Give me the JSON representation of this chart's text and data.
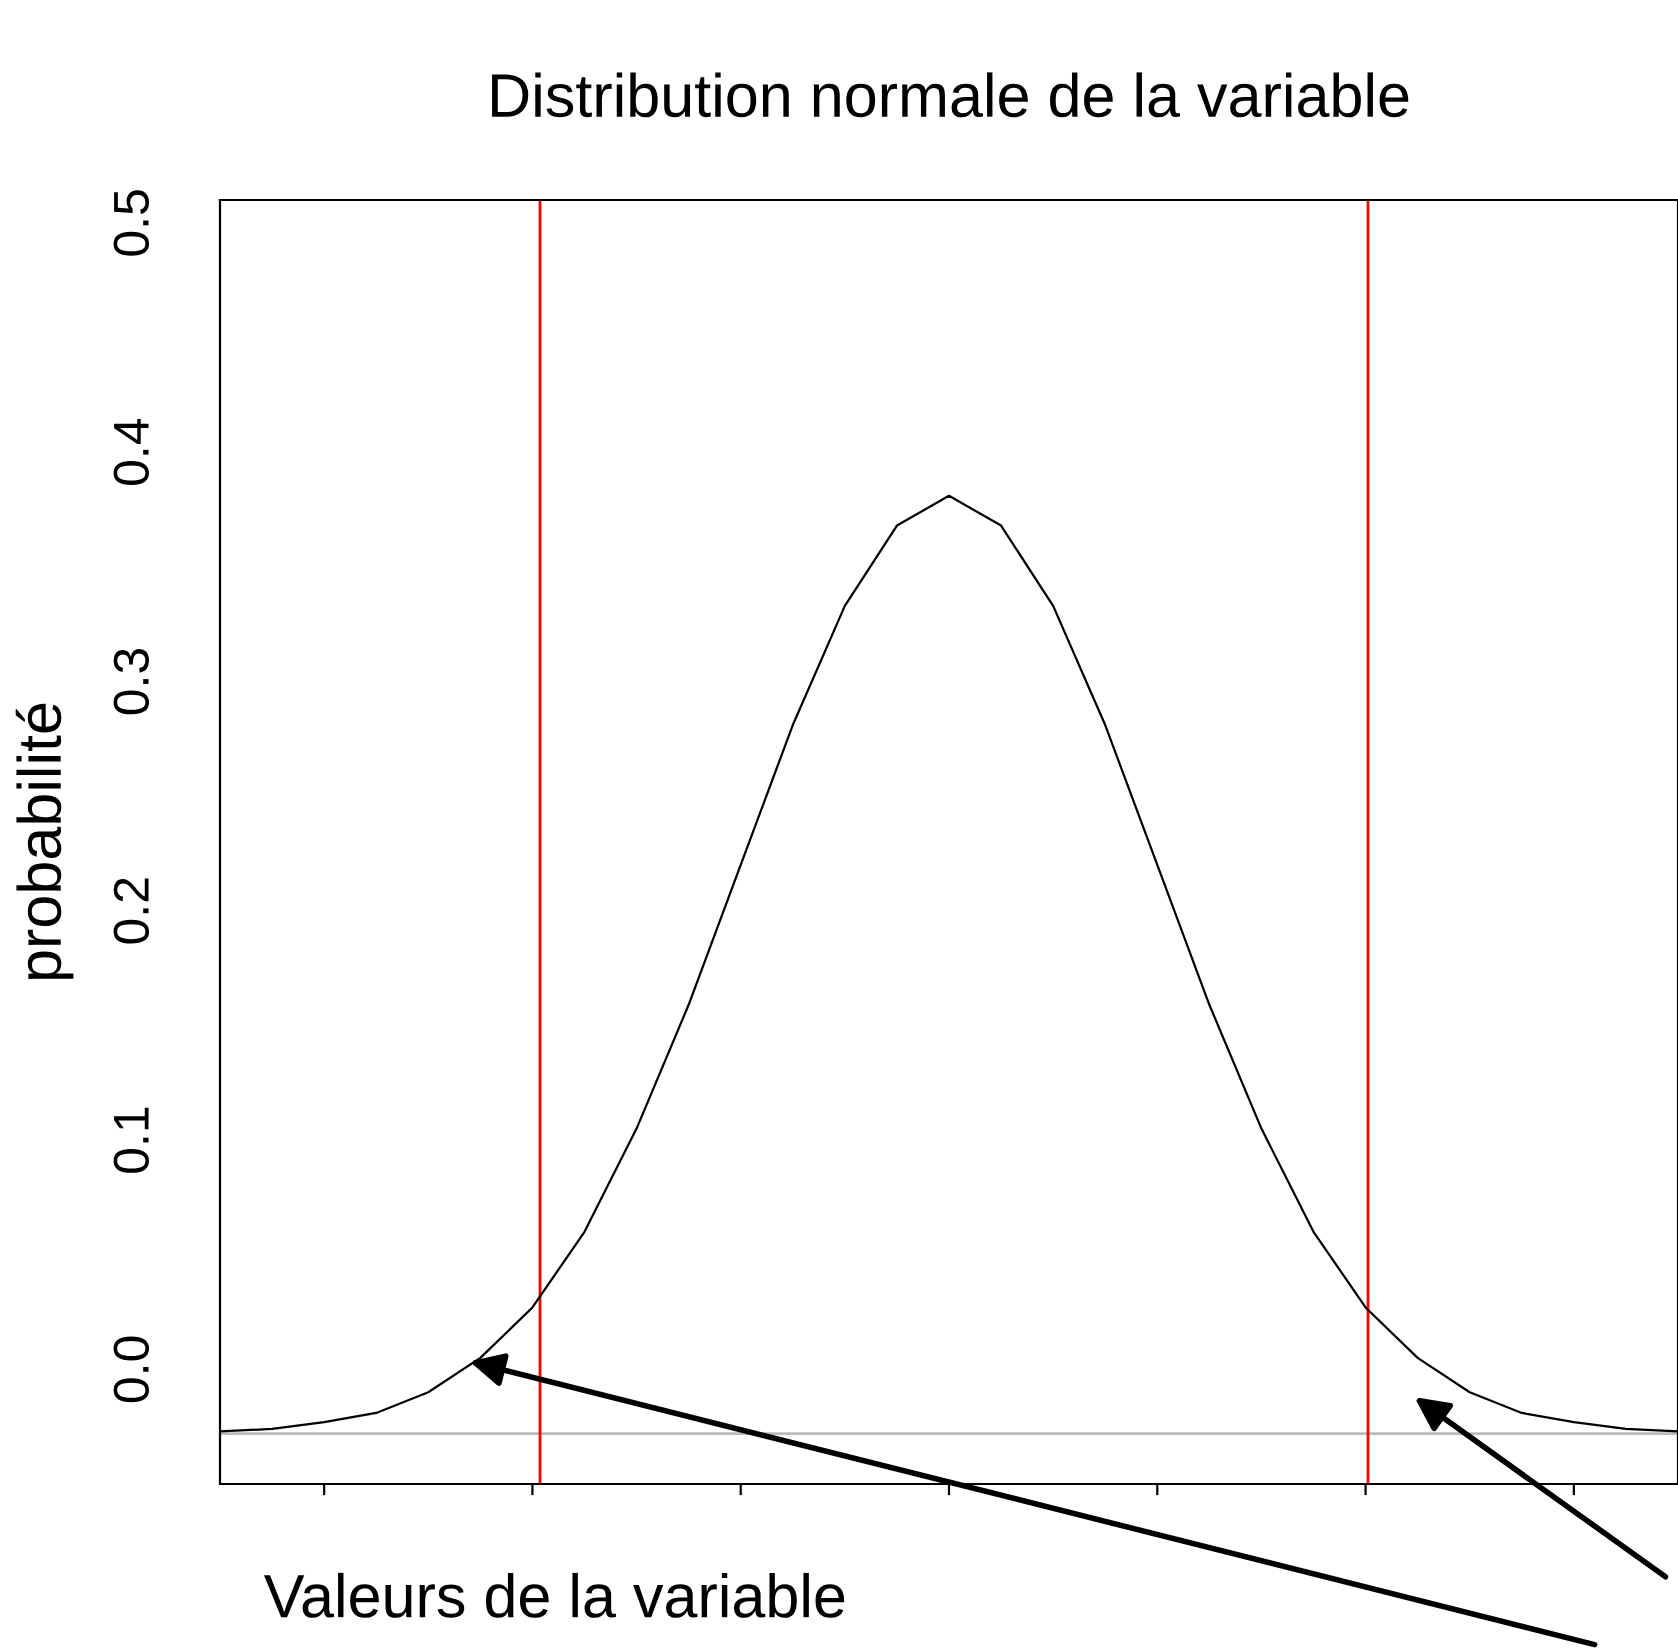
{
  "chart_data": {
    "type": "line",
    "title": "Distribution normale de la variable",
    "xlabel": "Valeurs de la variable",
    "ylabel": "probabilité",
    "categories": [
      null,
      null,
      null,
      null,
      null,
      null,
      null,
      null,
      null,
      null,
      null,
      null,
      null,
      null,
      null,
      null,
      null,
      null,
      null,
      null,
      null,
      null,
      null,
      null,
      null,
      null,
      null,
      null,
      null
    ],
    "series": [
      {
        "color": "#000000",
        "values": [
          -0.027,
          -0.026,
          -0.023,
          -0.019,
          -0.01,
          0.005,
          0.027,
          0.06,
          0.105,
          0.159,
          0.22,
          0.281,
          0.333,
          0.368,
          0.381,
          0.368,
          0.333,
          0.281,
          0.22,
          0.159,
          0.105,
          0.06,
          0.027,
          0.005,
          -0.01,
          -0.019,
          -0.023,
          -0.026,
          -0.027
        ]
      }
    ],
    "ylim": [
      -0.05,
      0.51
    ],
    "yticks": [
      {
        "value": 0,
        "label": "0.0"
      },
      {
        "value": 0.1,
        "label": "0.1"
      },
      {
        "value": 0.2,
        "label": "0.2"
      },
      {
        "value": 0.3,
        "label": "0.3"
      },
      {
        "value": 0.4,
        "label": "0.4"
      },
      {
        "value": 0.5,
        "label": "0.5"
      }
    ],
    "tick_labels": "y",
    "grid": false,
    "legend": false,
    "marker": "none",
    "line_style": "solid",
    "ref_lines": [
      {
        "axis": "y",
        "value": -0.028,
        "color": "#bbbbbb"
      }
    ]
  }
}
